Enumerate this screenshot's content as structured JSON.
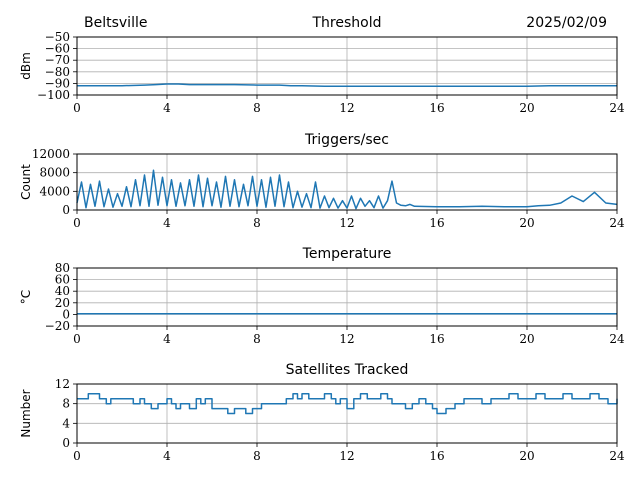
{
  "header": {
    "location": "Beltsville",
    "date": "2025/02/09"
  },
  "colors": {
    "series": "#1f77b4",
    "grid": "#b0b0b0"
  },
  "chart_data": [
    {
      "type": "line",
      "title": "Threshold",
      "ylabel": "dBm",
      "xlim": [
        0,
        24
      ],
      "ylim": [
        -100,
        -50
      ],
      "xticks": [
        0,
        4,
        8,
        12,
        16,
        20,
        24
      ],
      "yticks": [
        -100,
        -90,
        -80,
        -70,
        -60,
        -50
      ],
      "grid": true,
      "series": [
        {
          "x": [
            0,
            1,
            2,
            3,
            3.5,
            4,
            4.5,
            5,
            6,
            7,
            8,
            9,
            9.5,
            10,
            11,
            12,
            13,
            14,
            15,
            16,
            17,
            18,
            19,
            20,
            21,
            22,
            23,
            24
          ],
          "values": [
            -92,
            -92,
            -92,
            -91.5,
            -91,
            -90.5,
            -90.5,
            -91,
            -91,
            -91,
            -91.5,
            -91.5,
            -92,
            -92,
            -92.5,
            -92.5,
            -92.5,
            -92.5,
            -92.5,
            -92.5,
            -92.5,
            -92.5,
            -92.5,
            -92.5,
            -92,
            -92,
            -92,
            -92
          ]
        }
      ]
    },
    {
      "type": "line",
      "title": "Triggers/sec",
      "ylabel": "Count",
      "xlim": [
        0,
        24
      ],
      "ylim": [
        0,
        12000
      ],
      "xticks": [
        0,
        4,
        8,
        12,
        16,
        20,
        24
      ],
      "yticks": [
        0,
        4000,
        8000,
        12000
      ],
      "grid": true,
      "series": [
        {
          "x": [
            0,
            0.2,
            0.4,
            0.6,
            0.8,
            1,
            1.2,
            1.4,
            1.6,
            1.8,
            2,
            2.2,
            2.4,
            2.6,
            2.8,
            3,
            3.2,
            3.4,
            3.6,
            3.8,
            4,
            4.2,
            4.4,
            4.6,
            4.8,
            5,
            5.2,
            5.4,
            5.6,
            5.8,
            6,
            6.2,
            6.4,
            6.6,
            6.8,
            7,
            7.2,
            7.4,
            7.6,
            7.8,
            8,
            8.2,
            8.4,
            8.6,
            8.8,
            9,
            9.2,
            9.4,
            9.6,
            9.8,
            10,
            10.2,
            10.4,
            10.6,
            10.8,
            11,
            11.2,
            11.4,
            11.6,
            11.8,
            12,
            12.2,
            12.4,
            12.6,
            12.8,
            13,
            13.2,
            13.4,
            13.6,
            13.8,
            14,
            14.2,
            14.4,
            14.6,
            14.8,
            15,
            16,
            17,
            18,
            19,
            20,
            20.5,
            21,
            21.5,
            22,
            22.5,
            23,
            23.5,
            24
          ],
          "values": [
            1500,
            6000,
            500,
            5500,
            800,
            6200,
            700,
            4500,
            600,
            3500,
            800,
            5000,
            700,
            6500,
            900,
            7500,
            800,
            8500,
            1000,
            7000,
            900,
            6500,
            800,
            5800,
            900,
            6500,
            800,
            7500,
            700,
            6800,
            900,
            6000,
            600,
            7200,
            800,
            6500,
            700,
            5500,
            900,
            7200,
            800,
            6500,
            600,
            7000,
            800,
            7500,
            700,
            6000,
            500,
            4000,
            600,
            3500,
            500,
            6000,
            400,
            3000,
            500,
            2500,
            400,
            2000,
            400,
            3000,
            300,
            2500,
            800,
            2000,
            500,
            3000,
            400,
            2000,
            6200,
            1500,
            1000,
            900,
            1200,
            800,
            700,
            700,
            800,
            700,
            700,
            900,
            1000,
            1500,
            3000,
            1800,
            3800,
            1500,
            1200
          ]
        }
      ]
    },
    {
      "type": "line",
      "title": "Temperature",
      "ylabel": "°C",
      "xlim": [
        0,
        24
      ],
      "ylim": [
        -20,
        80
      ],
      "xticks": [
        0,
        4,
        8,
        12,
        16,
        20,
        24
      ],
      "yticks": [
        -20,
        0,
        20,
        40,
        60,
        80
      ],
      "grid": true,
      "series": [
        {
          "x": [
            0,
            24
          ],
          "values": [
            1,
            1
          ]
        }
      ]
    },
    {
      "type": "line",
      "title": "Satellites Tracked",
      "ylabel": "Number",
      "xlim": [
        0,
        24
      ],
      "ylim": [
        0,
        12
      ],
      "xticks": [
        0,
        4,
        8,
        12,
        16,
        20,
        24
      ],
      "yticks": [
        0,
        4,
        8,
        12
      ],
      "grid": true,
      "series": [
        {
          "step": true,
          "x": [
            0,
            0.5,
            1,
            1.3,
            1.5,
            2,
            2.5,
            2.8,
            3,
            3.3,
            3.6,
            4,
            4.2,
            4.4,
            4.6,
            5,
            5.3,
            5.5,
            5.7,
            6,
            6.4,
            6.7,
            7,
            7.2,
            7.5,
            7.8,
            8.2,
            8.6,
            9,
            9.3,
            9.6,
            9.8,
            10,
            10.3,
            10.6,
            11,
            11.3,
            11.5,
            11.7,
            12,
            12.3,
            12.6,
            12.9,
            13.2,
            13.5,
            13.8,
            14,
            14.3,
            14.6,
            14.9,
            15.2,
            15.5,
            15.8,
            16,
            16.4,
            16.8,
            17.2,
            17.6,
            18,
            18.4,
            18.8,
            19.2,
            19.6,
            20,
            20.4,
            20.8,
            21.2,
            21.6,
            22,
            22.4,
            22.8,
            23.2,
            23.6,
            24
          ],
          "values": [
            9,
            10,
            9,
            8,
            9,
            9,
            8,
            9,
            8,
            7,
            8,
            9,
            8,
            7,
            8,
            7,
            9,
            8,
            9,
            7,
            7,
            6,
            7,
            7,
            6,
            7,
            8,
            8,
            8,
            9,
            10,
            9,
            10,
            9,
            9,
            10,
            9,
            8,
            9,
            7,
            9,
            10,
            9,
            9,
            10,
            9,
            8,
            8,
            7,
            8,
            9,
            8,
            7,
            6,
            7,
            8,
            9,
            9,
            8,
            9,
            9,
            10,
            9,
            9,
            10,
            9,
            9,
            10,
            9,
            9,
            10,
            9,
            8,
            9
          ]
        }
      ]
    }
  ]
}
